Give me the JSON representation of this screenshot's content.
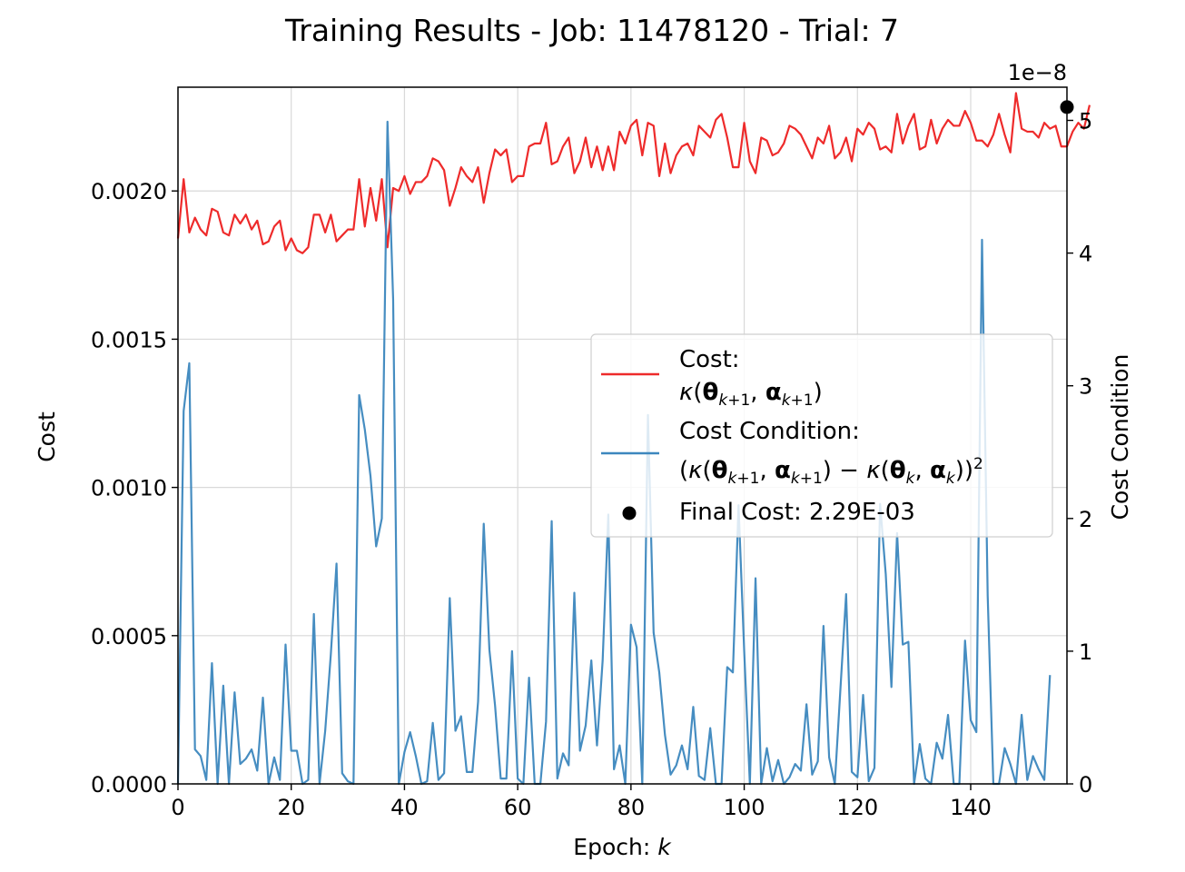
{
  "chart_data": {
    "type": "line",
    "title": "Training Results - Job: 11478120 - Trial: 7",
    "xlabel": "Epoch: k",
    "ylabel_left": "Cost",
    "ylabel_right": "Cost Condition",
    "right_axis_offset": "1e−8",
    "xlim": [
      0,
      157
    ],
    "ylim_left": [
      0,
      0.00235
    ],
    "ylim_right": [
      0,
      5.25
    ],
    "x_ticks": [
      "0",
      "20",
      "40",
      "60",
      "80",
      "100",
      "120",
      "140"
    ],
    "y_ticks_left": [
      "0.0000",
      "0.0005",
      "0.0010",
      "0.0015",
      "0.0020"
    ],
    "y_ticks_right": [
      "0",
      "1",
      "2",
      "3",
      "4",
      "5"
    ],
    "grid": true,
    "legend_position": "center-right",
    "series": [
      {
        "name": "Cost: κ(θk+1, αk+1)",
        "axis": "left",
        "color": "#ee2b2b",
        "values": [
          0.00184,
          0.00204,
          0.00186,
          0.00191,
          0.00187,
          0.00185,
          0.00194,
          0.00193,
          0.00186,
          0.00185,
          0.00192,
          0.00189,
          0.00192,
          0.00187,
          0.0019,
          0.00182,
          0.00183,
          0.00188,
          0.0019,
          0.0018,
          0.00184,
          0.0018,
          0.00179,
          0.00181,
          0.00192,
          0.00192,
          0.00186,
          0.00192,
          0.00183,
          0.00185,
          0.00187,
          0.00187,
          0.00204,
          0.00188,
          0.00201,
          0.0019,
          0.00204,
          0.00181,
          0.00201,
          0.002,
          0.00205,
          0.00199,
          0.00203,
          0.00203,
          0.00205,
          0.00211,
          0.0021,
          0.00207,
          0.00195,
          0.00201,
          0.00208,
          0.00205,
          0.00203,
          0.00208,
          0.00196,
          0.00206,
          0.00214,
          0.00212,
          0.00214,
          0.00203,
          0.00205,
          0.00205,
          0.00215,
          0.00216,
          0.00216,
          0.00223,
          0.00209,
          0.0021,
          0.00215,
          0.00218,
          0.00206,
          0.0021,
          0.00218,
          0.00208,
          0.00215,
          0.00207,
          0.00215,
          0.00207,
          0.0022,
          0.00216,
          0.00222,
          0.00224,
          0.00212,
          0.00223,
          0.00222,
          0.00205,
          0.00216,
          0.00206,
          0.00212,
          0.00215,
          0.00216,
          0.00212,
          0.00222,
          0.0022,
          0.00218,
          0.00224,
          0.00226,
          0.00218,
          0.00208,
          0.00208,
          0.00223,
          0.0021,
          0.00206,
          0.00218,
          0.00217,
          0.00212,
          0.00213,
          0.00216,
          0.00222,
          0.00221,
          0.00219,
          0.00215,
          0.00211,
          0.00218,
          0.00216,
          0.00222,
          0.00211,
          0.00213,
          0.00218,
          0.0021,
          0.00221,
          0.00219,
          0.00223,
          0.00221,
          0.00214,
          0.00215,
          0.00213,
          0.00226,
          0.00216,
          0.00222,
          0.00226,
          0.00214,
          0.00215,
          0.00224,
          0.00216,
          0.00221,
          0.00224,
          0.00222,
          0.00222,
          0.00227,
          0.00223,
          0.00217,
          0.00217,
          0.00215,
          0.00219,
          0.00226,
          0.00219,
          0.00213,
          0.00233,
          0.00221,
          0.0022,
          0.0022,
          0.00218,
          0.00223,
          0.00221,
          0.00222,
          0.00215,
          0.00215,
          0.0022,
          0.00223,
          0.00221,
          0.00229
        ]
      },
      {
        "name": "Cost Condition: (κ(θk+1, αk+1) − κ(θk, αk))²",
        "axis": "right",
        "color": "#3c87be",
        "values": [
          0.0,
          2.81,
          3.17,
          0.26,
          0.21,
          0.03,
          0.91,
          0.0,
          0.74,
          0.0,
          0.69,
          0.15,
          0.19,
          0.26,
          0.1,
          0.65,
          0.0,
          0.2,
          0.03,
          1.05,
          0.25,
          0.25,
          0.0,
          0.03,
          1.28,
          0.0,
          0.4,
          0.98,
          1.66,
          0.08,
          0.02,
          0.0,
          2.93,
          2.67,
          2.32,
          1.79,
          2.0,
          4.99,
          3.65,
          0.0,
          0.24,
          0.39,
          0.21,
          0.0,
          0.02,
          0.46,
          0.03,
          0.08,
          1.4,
          0.4,
          0.51,
          0.09,
          0.09,
          0.62,
          1.96,
          1.01,
          0.59,
          0.04,
          0.04,
          1.0,
          0.04,
          0.0,
          0.8,
          0.0,
          0.0,
          0.47,
          1.98,
          0.04,
          0.23,
          0.14,
          1.44,
          0.25,
          0.44,
          0.93,
          0.29,
          0.93,
          2.03,
          0.11,
          0.29,
          0.0,
          1.2,
          1.03,
          0.0,
          2.78,
          1.14,
          0.84,
          0.37,
          0.07,
          0.14,
          0.29,
          0.11,
          0.58,
          0.06,
          0.03,
          0.42,
          0.0,
          0.0,
          0.88,
          0.84,
          2.1,
          1.0,
          0.0,
          1.55,
          0.0,
          0.27,
          0.02,
          0.18,
          0.0,
          0.05,
          0.15,
          0.1,
          0.6,
          0.07,
          0.17,
          1.19,
          0.2,
          0.0,
          0.72,
          1.43,
          0.09,
          0.05,
          0.67,
          0.02,
          0.12,
          2.11,
          1.58,
          0.73,
          1.89,
          1.05,
          1.07,
          0.0,
          0.3,
          0.04,
          0.0,
          0.31,
          0.19,
          0.52,
          0.0,
          0.0,
          1.08,
          0.48,
          0.39,
          4.1,
          1.42,
          0.0,
          0.0,
          0.27,
          0.15,
          0.0,
          0.52,
          0.03,
          0.21,
          0.11,
          0.03,
          0.82
        ]
      }
    ],
    "final_cost": {
      "label": "Final Cost: 2.29E-03",
      "epoch": 157,
      "value_right_axis": 5.1,
      "color": "#000000"
    }
  },
  "legend": {
    "cost_line1": "Cost:",
    "cost_line2_kappa": "κ(",
    "cost_line2_theta": "θ",
    "cost_line2_alpha": "α",
    "cost_line2_sub": "k+1",
    "cond_line1": "Cost Condition:",
    "final": "Final Cost: 2.29E-03"
  }
}
